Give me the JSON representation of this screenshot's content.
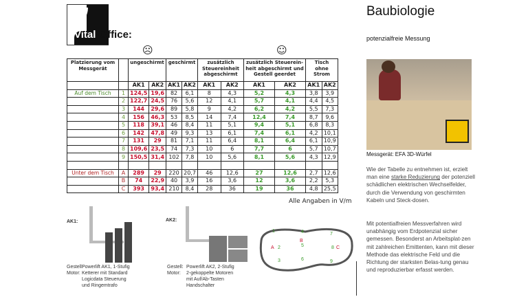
{
  "logo": {
    "text_a": "Vital",
    "text_b": "-Office:"
  },
  "smileys": {
    "sad": "☹",
    "happy": "☺"
  },
  "table": {
    "headers": [
      "Platzierung vom Messgerät",
      "",
      "ungeschirmt",
      "geschirmt",
      "zusätzlich Steuereinheit abgeschirmt",
      "zusätzlich Steuerein-heit abgeschirmt und Gestell geerdet",
      "Tisch ohne Strom"
    ],
    "sub": [
      "AK1",
      "AK2"
    ],
    "group1_label": "Auf dem Tisch",
    "group2_label": "Unter dem Tisch",
    "rows1": [
      [
        "1",
        "124,5",
        "19,6",
        "82",
        "6,1",
        "8",
        "4,3",
        "5,2",
        "4,3",
        "3,8",
        "3,9"
      ],
      [
        "2",
        "122,7",
        "24,5",
        "76",
        "5,6",
        "12",
        "4,1",
        "5,7",
        "4,1",
        "4,4",
        "4,5"
      ],
      [
        "3",
        "144",
        "29,6",
        "89",
        "5,8",
        "9",
        "4,2",
        "6,2",
        "4,2",
        "5,5",
        "7,3"
      ],
      [
        "4",
        "156",
        "46,3",
        "53",
        "8,5",
        "14",
        "7,4",
        "12,4",
        "7,4",
        "8,7",
        "9,6"
      ],
      [
        "5",
        "118",
        "39,1",
        "46",
        "8,4",
        "11",
        "5,1",
        "9,4",
        "5,1",
        "6,8",
        "8,3"
      ],
      [
        "6",
        "142",
        "47,8",
        "49",
        "9,3",
        "13",
        "6,1",
        "7,4",
        "6,1",
        "4,2",
        "10,1"
      ],
      [
        "7",
        "131",
        "29",
        "81",
        "7,1",
        "11",
        "6,4",
        "8,1",
        "6,4",
        "6,1",
        "10,9"
      ],
      [
        "8",
        "109,6",
        "23,5",
        "74",
        "7,3",
        "10",
        "6",
        "7,7",
        "6",
        "5,7",
        "10,7"
      ],
      [
        "9",
        "150,5",
        "31,4",
        "102",
        "7,8",
        "10",
        "5,6",
        "8,1",
        "5,6",
        "4,3",
        "12,9"
      ]
    ],
    "rows2": [
      [
        "A",
        "289",
        "29",
        "220",
        "20,7",
        "46",
        "12,6",
        "27",
        "12,6",
        "2,7",
        "12,6"
      ],
      [
        "B",
        "74",
        "22,9",
        "40",
        "3,9",
        "16",
        "3,6",
        "12",
        "3,6",
        "2,2",
        "5,3"
      ],
      [
        "C",
        "393",
        "93,4",
        "210",
        "8,4",
        "28",
        "36",
        "19",
        "36",
        "4,8",
        "25,5"
      ]
    ],
    "unit_note": "Alle Angaben in V/m"
  },
  "ak1": {
    "label": "AK1:",
    "k1": "Gestell:",
    "k2": "Motor:",
    "desc": [
      "Powerlift AK1, 1-Stufig",
      "Ketterer mit Standard",
      "Logicdata Steuerung",
      "und Ringemtrafo"
    ]
  },
  "ak2": {
    "label": "AK2:",
    "k1": "Gestell:",
    "k2": "Motor:",
    "desc": [
      "Powerlift AK2, 2-Stufig",
      "2-gekoppelte Motoren",
      "mit Auf/Ab-Tasten",
      "Handschalter"
    ]
  },
  "diagram": {
    "green": [
      "1",
      "2",
      "3",
      "4",
      "5",
      "6",
      "7",
      "8",
      "9"
    ],
    "red": [
      "A",
      "B",
      "C"
    ]
  },
  "right": {
    "title": "Baubiologie",
    "subtitle": "potenzialfreie Messung",
    "photo_caption": "Messgerät: EFA 3D-Würfel",
    "p1_a": "Wie der Tabelle zu entnehmen ist, erzielt man eine ",
    "p1_u": "starke Reduzierung",
    "p1_b": " der  potenziell schädlichen elektrischen Wechselfelder, durch die Verwendung von geschirmten Kabeln und Steck-dosen.",
    "p2": "Mit potentialfreien Messverfahren wird unabhängig vom Erdpotenzial sicher gemessen. Besonderst an Arbeitsplat-zen mit zahlreichen Emittenten, kann mit dieser Methode das elektrische Feld und die Richtung der starksten Belas-tung genau und reproduzierbar erfasst werden."
  }
}
